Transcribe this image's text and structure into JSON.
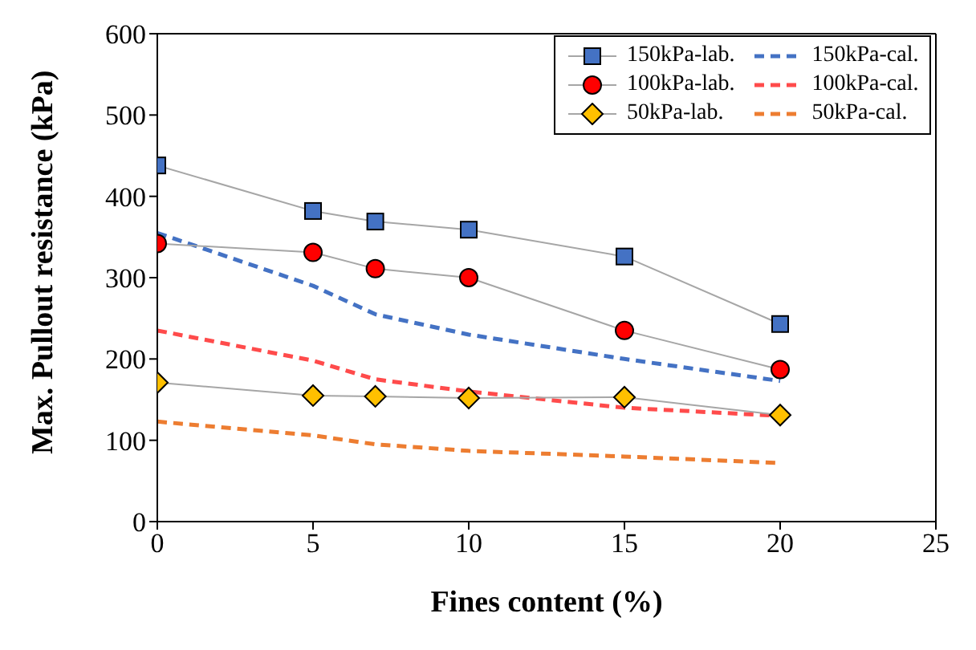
{
  "chart_data": {
    "type": "line",
    "xlabel": "Fines content (%)",
    "ylabel": "Max. Pullout resistance (kPa)",
    "x": [
      0,
      5,
      7,
      10,
      15,
      20
    ],
    "xlim": [
      0,
      25
    ],
    "xticks": [
      0,
      5,
      10,
      15,
      20,
      25
    ],
    "ylim": [
      0,
      600
    ],
    "yticks": [
      0,
      100,
      200,
      300,
      400,
      500,
      600
    ],
    "grid": false,
    "legend": "top right",
    "series": [
      {
        "name": "150kPa-lab.",
        "color": "#4472c4",
        "marker": "square",
        "line_style": "solid",
        "values": [
          438,
          382,
          369,
          359,
          326,
          243
        ]
      },
      {
        "name": "150kPa-cal.",
        "color": "#4472c4",
        "marker": "none",
        "line_style": "dashed",
        "values": [
          355,
          290,
          255,
          230,
          200,
          173
        ]
      },
      {
        "name": "100kPa-lab.",
        "color": "#ff0000",
        "marker": "circle",
        "line_style": "solid",
        "values": [
          342,
          331,
          311,
          300,
          235,
          187
        ]
      },
      {
        "name": "100kPa-cal.",
        "color": "#ff4b4b",
        "marker": "none",
        "line_style": "dashed",
        "values": [
          235,
          198,
          175,
          160,
          140,
          130
        ]
      },
      {
        "name": "50kPa-lab.",
        "color": "#ffc000",
        "marker": "diamond",
        "line_style": "solid",
        "values": [
          171,
          155,
          154,
          152,
          153,
          131
        ]
      },
      {
        "name": "50kPa-cal.",
        "color": "#ed7d31",
        "marker": "none",
        "line_style": "dashed",
        "values": [
          123,
          106,
          95,
          87,
          80,
          72
        ]
      }
    ]
  }
}
